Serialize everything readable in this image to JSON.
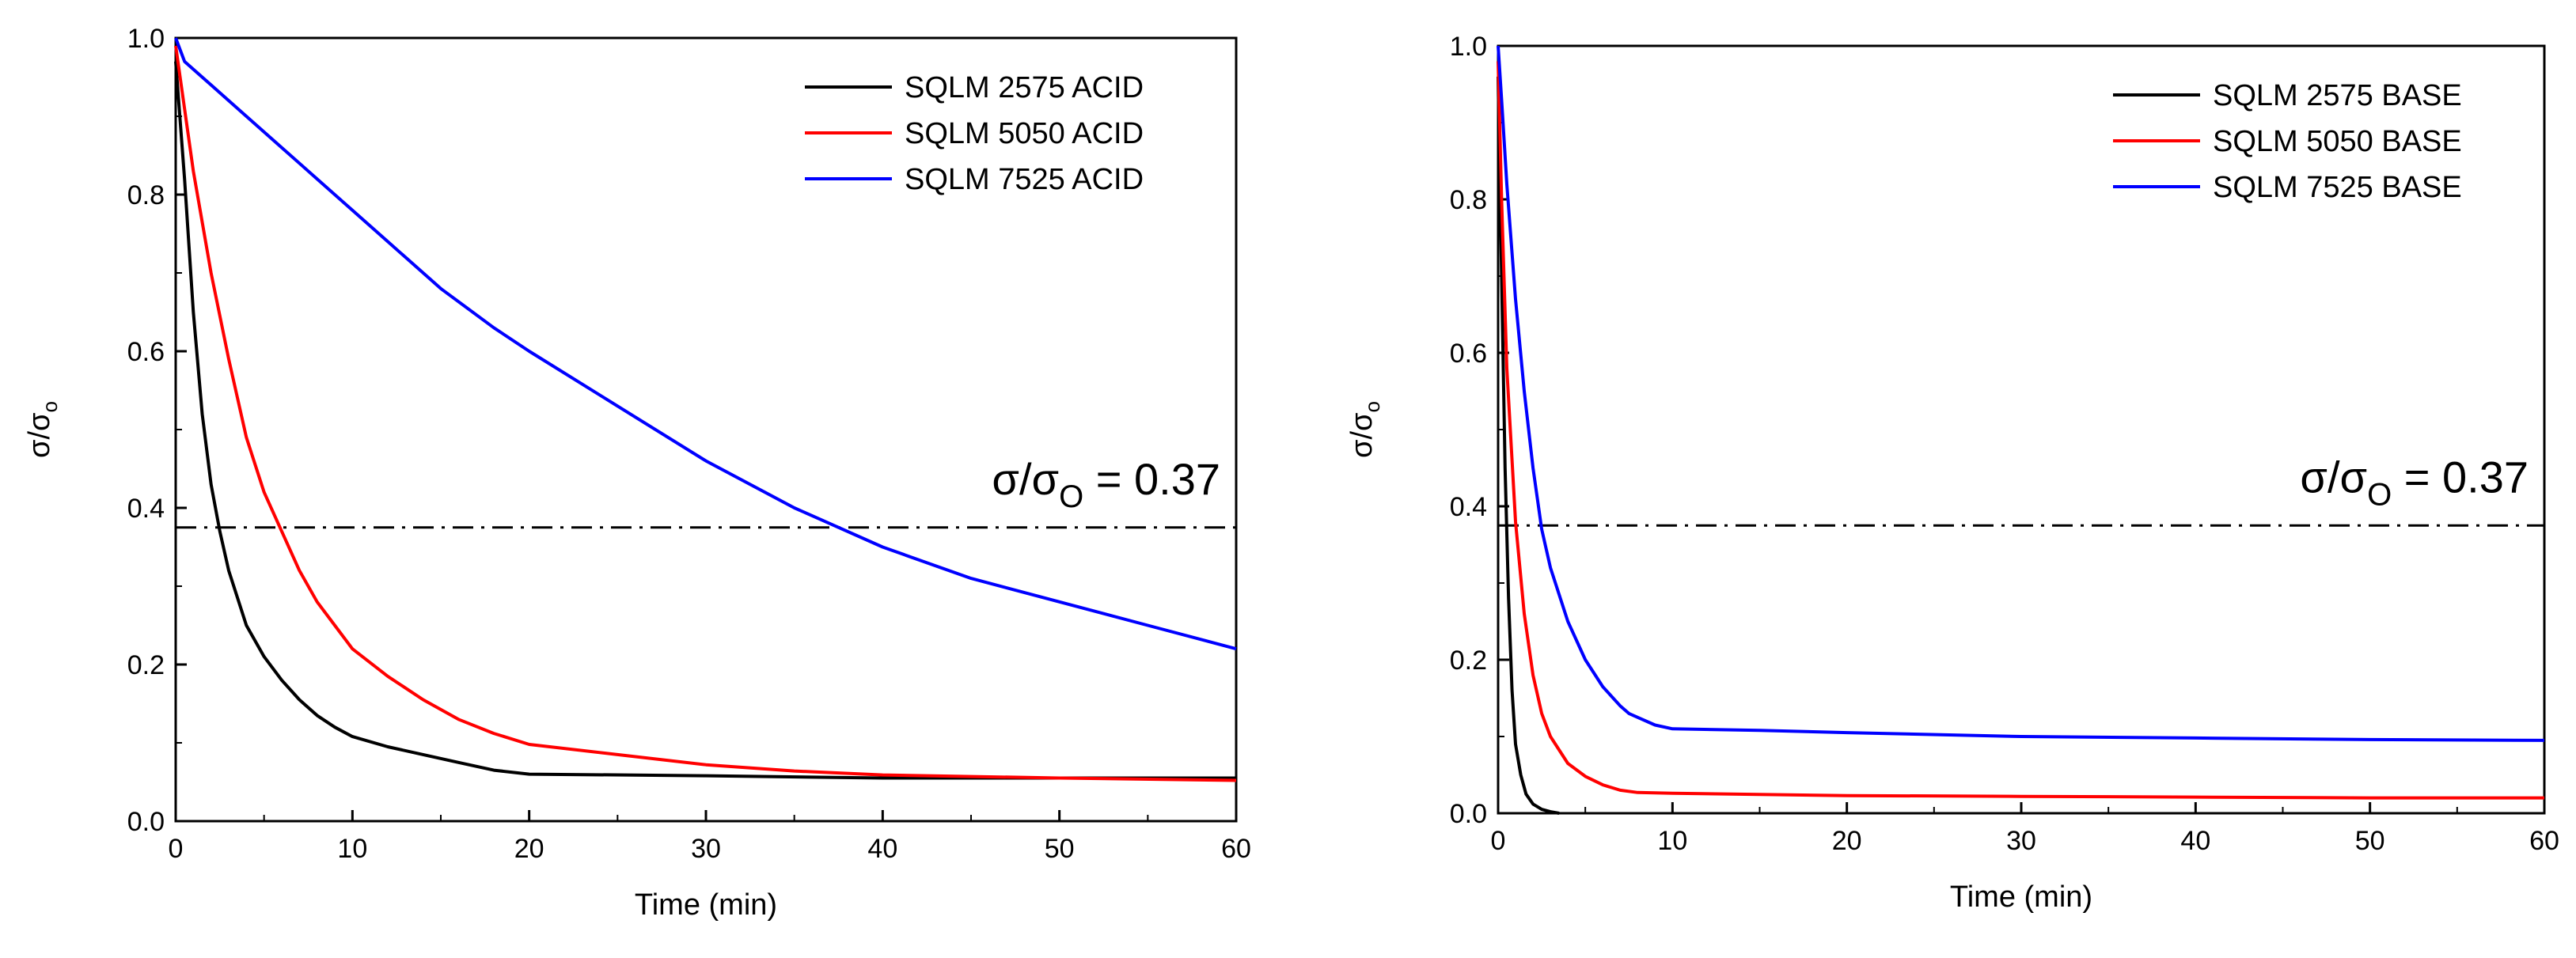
{
  "chart_data": [
    {
      "type": "line",
      "xlabel": "Time (min)",
      "ylabel": "σ/σ",
      "ylabel_sub": "o",
      "xlim": [
        0,
        60
      ],
      "ylim": [
        0,
        1.0
      ],
      "xticks": [
        0,
        10,
        20,
        30,
        40,
        50,
        60
      ],
      "yticks": [
        0.0,
        0.2,
        0.4,
        0.6,
        0.8,
        1.0
      ],
      "xtick_labels": [
        "0",
        "10",
        "20",
        "30",
        "40",
        "50",
        "60"
      ],
      "ytick_labels": [
        "0.0",
        "0.2",
        "0.4",
        "0.6",
        "0.8",
        "1.0"
      ],
      "reference_line": {
        "y": 0.375,
        "style": "dash-dot"
      },
      "annotation": {
        "text": "σ/σ",
        "sub": "O",
        "suffix": " = 0.37"
      },
      "legend": "top-right",
      "series": [
        {
          "name": "SQLM 2575 ACID",
          "color": "#000000",
          "points": [
            [
              0,
              0.97
            ],
            [
              0.5,
              0.82
            ],
            [
              1,
              0.65
            ],
            [
              1.5,
              0.52
            ],
            [
              2,
              0.43
            ],
            [
              2.5,
              0.37
            ],
            [
              3,
              0.32
            ],
            [
              4,
              0.25
            ],
            [
              5,
              0.21
            ],
            [
              6,
              0.18
            ],
            [
              7,
              0.155
            ],
            [
              8,
              0.135
            ],
            [
              9,
              0.12
            ],
            [
              10,
              0.108
            ],
            [
              12,
              0.095
            ],
            [
              14,
              0.085
            ],
            [
              16,
              0.075
            ],
            [
              18,
              0.065
            ],
            [
              20,
              0.06
            ],
            [
              30,
              0.058
            ],
            [
              40,
              0.055
            ],
            [
              50,
              0.055
            ],
            [
              60,
              0.055
            ]
          ]
        },
        {
          "name": "SQLM 5050 ACID",
          "color": "#ff0000",
          "points": [
            [
              0,
              0.99
            ],
            [
              1,
              0.83
            ],
            [
              2,
              0.7
            ],
            [
              3,
              0.59
            ],
            [
              4,
              0.49
            ],
            [
              5,
              0.42
            ],
            [
              6,
              0.37
            ],
            [
              7,
              0.32
            ],
            [
              8,
              0.28
            ],
            [
              9,
              0.25
            ],
            [
              10,
              0.22
            ],
            [
              12,
              0.185
            ],
            [
              14,
              0.155
            ],
            [
              16,
              0.13
            ],
            [
              18,
              0.112
            ],
            [
              20,
              0.098
            ],
            [
              25,
              0.085
            ],
            [
              30,
              0.072
            ],
            [
              35,
              0.064
            ],
            [
              40,
              0.059
            ],
            [
              50,
              0.055
            ],
            [
              60,
              0.052
            ]
          ]
        },
        {
          "name": "SQLM 7525 ACID",
          "color": "#0000ff",
          "points": [
            [
              0,
              1.0
            ],
            [
              0.5,
              0.97
            ],
            [
              2,
              0.94
            ],
            [
              4,
              0.9
            ],
            [
              6,
              0.86
            ],
            [
              8,
              0.82
            ],
            [
              10,
              0.78
            ],
            [
              12,
              0.74
            ],
            [
              15,
              0.68
            ],
            [
              18,
              0.63
            ],
            [
              20,
              0.6
            ],
            [
              25,
              0.53
            ],
            [
              30,
              0.46
            ],
            [
              35,
              0.4
            ],
            [
              36.5,
              0.385
            ],
            [
              40,
              0.35
            ],
            [
              45,
              0.31
            ],
            [
              50,
              0.28
            ],
            [
              55,
              0.25
            ],
            [
              60,
              0.22
            ]
          ]
        }
      ]
    },
    {
      "type": "line",
      "xlabel": "Time (min)",
      "ylabel": "σ/σ",
      "ylabel_sub": "o",
      "xlim": [
        0,
        60
      ],
      "ylim": [
        0,
        1.0
      ],
      "xticks": [
        0,
        10,
        20,
        30,
        40,
        50,
        60
      ],
      "yticks": [
        0.0,
        0.2,
        0.4,
        0.6,
        0.8,
        1.0
      ],
      "xtick_labels": [
        "0",
        "10",
        "20",
        "30",
        "40",
        "50",
        "60"
      ],
      "ytick_labels": [
        "0.0",
        "0.2",
        "0.4",
        "0.6",
        "0.8",
        "1.0"
      ],
      "reference_line": {
        "y": 0.375,
        "style": "dash-dot"
      },
      "annotation": {
        "text": "σ/σ",
        "sub": "O",
        "suffix": " = 0.37"
      },
      "legend": "top-right",
      "series": [
        {
          "name": "SQLM 2575 BASE",
          "color": "#000000",
          "points": [
            [
              0,
              0.96
            ],
            [
              0.2,
              0.7
            ],
            [
              0.4,
              0.45
            ],
            [
              0.6,
              0.28
            ],
            [
              0.8,
              0.16
            ],
            [
              1,
              0.09
            ],
            [
              1.3,
              0.05
            ],
            [
              1.6,
              0.025
            ],
            [
              2,
              0.012
            ],
            [
              2.5,
              0.005
            ],
            [
              3,
              0.002
            ],
            [
              3.5,
              0.0
            ]
          ]
        },
        {
          "name": "SQLM 5050 BASE",
          "color": "#ff0000",
          "points": [
            [
              0,
              0.98
            ],
            [
              0.2,
              0.8
            ],
            [
              0.5,
              0.58
            ],
            [
              1,
              0.38
            ],
            [
              1.5,
              0.26
            ],
            [
              2,
              0.18
            ],
            [
              2.5,
              0.13
            ],
            [
              3,
              0.1
            ],
            [
              4,
              0.065
            ],
            [
              5,
              0.048
            ],
            [
              6,
              0.037
            ],
            [
              7,
              0.03
            ],
            [
              8,
              0.027
            ],
            [
              10,
              0.026
            ],
            [
              20,
              0.023
            ],
            [
              30,
              0.022
            ],
            [
              40,
              0.021
            ],
            [
              50,
              0.02
            ],
            [
              60,
              0.02
            ]
          ]
        },
        {
          "name": "SQLM 7525 BASE",
          "color": "#0000ff",
          "points": [
            [
              0,
              1.0
            ],
            [
              0.2,
              0.93
            ],
            [
              0.5,
              0.82
            ],
            [
              1,
              0.67
            ],
            [
              1.5,
              0.55
            ],
            [
              2,
              0.45
            ],
            [
              2.5,
              0.37
            ],
            [
              3,
              0.32
            ],
            [
              4,
              0.25
            ],
            [
              5,
              0.2
            ],
            [
              6,
              0.165
            ],
            [
              7,
              0.14
            ],
            [
              7.5,
              0.13
            ],
            [
              8,
              0.125
            ],
            [
              9,
              0.115
            ],
            [
              10,
              0.11
            ],
            [
              15,
              0.108
            ],
            [
              20,
              0.105
            ],
            [
              30,
              0.1
            ],
            [
              40,
              0.098
            ],
            [
              50,
              0.096
            ],
            [
              60,
              0.095
            ]
          ]
        }
      ]
    }
  ]
}
